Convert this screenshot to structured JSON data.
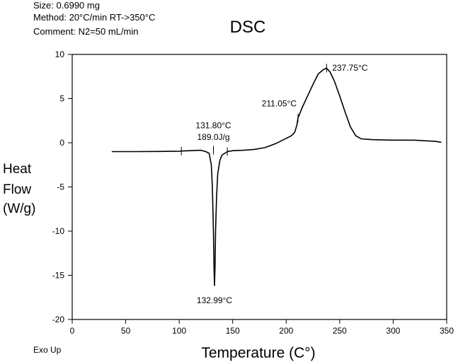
{
  "header": {
    "size": "Size: 0.6990 mg",
    "method": "Method: 20°C/min RT->350°C",
    "comment": "Comment: N2=50 mL/min"
  },
  "chart_data": {
    "type": "line",
    "title": "DSC",
    "xlabel": "Temperature (C°)",
    "ylabel": [
      "Heat",
      "Flow",
      "(W/g)"
    ],
    "corner_label": "Exo Up",
    "xlim": [
      0,
      350
    ],
    "ylim": [
      -20,
      10
    ],
    "x_ticks": [
      0,
      50,
      100,
      150,
      200,
      250,
      300,
      350
    ],
    "y_ticks": [
      -20,
      -15,
      -10,
      -5,
      0,
      5,
      10
    ],
    "grid": false,
    "series": [
      {
        "points": [
          [
            37,
            -1.0
          ],
          [
            60,
            -1.0
          ],
          [
            80,
            -0.98
          ],
          [
            100,
            -0.95
          ],
          [
            110,
            -0.9
          ],
          [
            120,
            -0.85
          ],
          [
            125,
            -1.0
          ],
          [
            128,
            -1.2
          ],
          [
            130,
            -2.5
          ],
          [
            131,
            -5.0
          ],
          [
            132,
            -10.0
          ],
          [
            132.5,
            -14.0
          ],
          [
            132.99,
            -16.2
          ],
          [
            133.5,
            -14.0
          ],
          [
            134,
            -10.0
          ],
          [
            135,
            -6.0
          ],
          [
            136,
            -3.5
          ],
          [
            138,
            -2.0
          ],
          [
            140,
            -1.4
          ],
          [
            145,
            -1.0
          ],
          [
            150,
            -0.9
          ],
          [
            160,
            -0.85
          ],
          [
            170,
            -0.75
          ],
          [
            180,
            -0.55
          ],
          [
            190,
            -0.1
          ],
          [
            200,
            0.5
          ],
          [
            205,
            0.8
          ],
          [
            208,
            1.2
          ],
          [
            210,
            2.0
          ],
          [
            211.05,
            2.8
          ],
          [
            215,
            4.0
          ],
          [
            220,
            5.3
          ],
          [
            225,
            6.6
          ],
          [
            230,
            7.8
          ],
          [
            235,
            8.3
          ],
          [
            237.75,
            8.45
          ],
          [
            241,
            8.0
          ],
          [
            245,
            7.0
          ],
          [
            250,
            5.3
          ],
          [
            255,
            3.5
          ],
          [
            260,
            1.8
          ],
          [
            265,
            0.8
          ],
          [
            270,
            0.45
          ],
          [
            280,
            0.35
          ],
          [
            300,
            0.3
          ],
          [
            320,
            0.3
          ],
          [
            340,
            0.15
          ],
          [
            345,
            0.05
          ]
        ]
      }
    ],
    "annotations": [
      {
        "text": "131.80°C",
        "x": 132,
        "y": 1.0
      },
      {
        "text": "189.0J/g",
        "x": 132,
        "y": 0.0
      },
      {
        "text": "132.99°C",
        "x": 132.99,
        "y": -17.2
      },
      {
        "text": "211.05°C",
        "x": 211.05,
        "y": 3.8
      },
      {
        "text": "237.75°C",
        "x": 237.75,
        "y": 8.5
      }
    ],
    "markers": [
      {
        "x": 102,
        "y": -0.95
      },
      {
        "x": 132,
        "y": -0.85
      },
      {
        "x": 145,
        "y": -1.0
      },
      {
        "x": 211.05,
        "y": 2.8
      },
      {
        "x": 237.75,
        "y": 8.45
      }
    ]
  }
}
